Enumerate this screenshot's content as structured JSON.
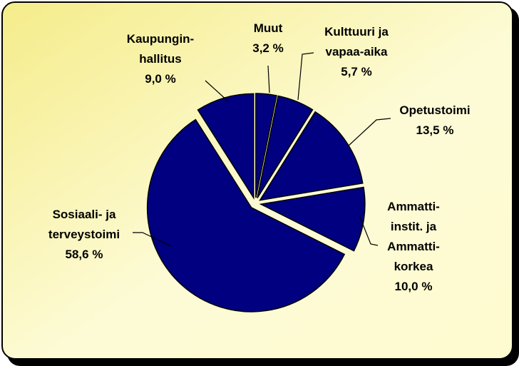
{
  "chart_data": {
    "type": "pie",
    "categories": [
      "Muut",
      "Kulttuuri ja\nvapaa-aika",
      "Opetustoimi",
      "Ammatti-\ninstit. ja\nAmmatti-\nkorkea",
      "Sosiaali- ja\nterveystoimi",
      "Kaupungin-\nhallitus"
    ],
    "values": [
      3.2,
      5.7,
      13.5,
      10.0,
      58.6,
      9.0
    ],
    "value_labels": [
      "3,2 %",
      "5,7 %",
      "13,5 %",
      "10,0 %",
      "58,6 %",
      "9,0 %"
    ],
    "color": "#000080"
  }
}
